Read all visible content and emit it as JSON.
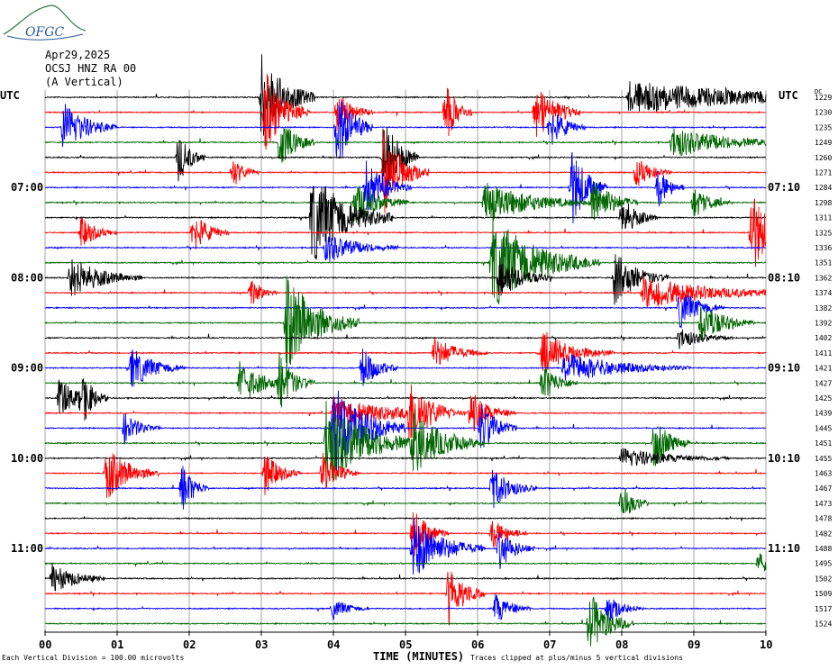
{
  "logo": {
    "text": "OFGC"
  },
  "header": {
    "date": "Apr29,2025",
    "station": "OCSJ HNZ RA 00",
    "component": "(A Vertical)"
  },
  "left_tz_label": "UTC",
  "right_tz_label": "UTC",
  "dc_label": "DC",
  "colors": {
    "black": "#000000",
    "red": "#ff0000",
    "blue": "#0000ff",
    "green": "#006600",
    "grid": "#808080"
  },
  "chart_data": {
    "type": "line",
    "title": "OCSJ HNZ RA 00 (A Vertical)",
    "xlabel": "TIME (MINUTES)",
    "x_ticks": [
      "00",
      "01",
      "02",
      "03",
      "04",
      "05",
      "06",
      "07",
      "08",
      "09",
      "10"
    ],
    "xlim": [
      0,
      10
    ],
    "left_hour_labels": [
      {
        "row": 6,
        "label": "07:00"
      },
      {
        "row": 12,
        "label": "08:00"
      },
      {
        "row": 18,
        "label": "09:00"
      },
      {
        "row": 24,
        "label": "10:00"
      },
      {
        "row": 30,
        "label": "11:00"
      }
    ],
    "right_hour_labels": [
      {
        "row": 6,
        "label": "07:10"
      },
      {
        "row": 12,
        "label": "08:10"
      },
      {
        "row": 18,
        "label": "09:10"
      },
      {
        "row": 24,
        "label": "10:10"
      },
      {
        "row": 30,
        "label": "11:10"
      }
    ],
    "trace_color_cycle": [
      "black",
      "red",
      "blue",
      "green"
    ],
    "dc_offsets": [
      1229,
      1230,
      1235,
      1249,
      1260,
      1271,
      1284,
      1298,
      1311,
      1325,
      1336,
      1351,
      1362,
      1374,
      1382,
      1392,
      1402,
      1411,
      1421,
      1427,
      1425,
      1439,
      1445,
      1451,
      1455,
      1463,
      1467,
      1473,
      1478,
      1482,
      1488,
      1495,
      1502,
      1509,
      1517,
      1524
    ],
    "events": [
      {
        "row": 0,
        "t": 3.0,
        "amp": 9,
        "dur": 0.3
      },
      {
        "row": 0,
        "t": 8.1,
        "amp": 3,
        "dur": 1.8
      },
      {
        "row": 1,
        "t": 3.05,
        "amp": 8,
        "dur": 0.25
      },
      {
        "row": 1,
        "t": 4.05,
        "amp": 4,
        "dur": 0.2
      },
      {
        "row": 1,
        "t": 5.55,
        "amp": 6,
        "dur": 0.15
      },
      {
        "row": 1,
        "t": 6.8,
        "amp": 6,
        "dur": 0.25
      },
      {
        "row": 2,
        "t": 0.25,
        "amp": 5,
        "dur": 0.3
      },
      {
        "row": 2,
        "t": 4.05,
        "amp": 8,
        "dur": 0.2
      },
      {
        "row": 2,
        "t": 7.0,
        "amp": 4,
        "dur": 0.2
      },
      {
        "row": 3,
        "t": 3.25,
        "amp": 5,
        "dur": 0.2
      },
      {
        "row": 3,
        "t": 8.7,
        "amp": 3,
        "dur": 0.7
      },
      {
        "row": 4,
        "t": 1.85,
        "amp": 5,
        "dur": 0.15
      },
      {
        "row": 4,
        "t": 4.7,
        "amp": 8,
        "dur": 0.2
      },
      {
        "row": 5,
        "t": 2.6,
        "amp": 3,
        "dur": 0.15
      },
      {
        "row": 5,
        "t": 4.7,
        "amp": 8,
        "dur": 0.25
      },
      {
        "row": 5,
        "t": 8.2,
        "amp": 3,
        "dur": 0.2
      },
      {
        "row": 6,
        "t": 4.45,
        "amp": 5,
        "dur": 0.25
      },
      {
        "row": 6,
        "t": 7.3,
        "amp": 8,
        "dur": 0.2
      },
      {
        "row": 6,
        "t": 8.5,
        "amp": 4,
        "dur": 0.15
      },
      {
        "row": 7,
        "t": 4.3,
        "amp": 4,
        "dur": 0.3
      },
      {
        "row": 7,
        "t": 6.1,
        "amp": 4,
        "dur": 0.6
      },
      {
        "row": 7,
        "t": 7.6,
        "amp": 5,
        "dur": 0.25
      },
      {
        "row": 7,
        "t": 9.0,
        "amp": 3,
        "dur": 0.2
      },
      {
        "row": 8,
        "t": 3.7,
        "amp": 9,
        "dur": 0.45
      },
      {
        "row": 8,
        "t": 8.0,
        "amp": 4,
        "dur": 0.2
      },
      {
        "row": 9,
        "t": 0.5,
        "amp": 3,
        "dur": 0.2
      },
      {
        "row": 9,
        "t": 2.05,
        "amp": 4,
        "dur": 0.2
      },
      {
        "row": 9,
        "t": 9.8,
        "amp": 9,
        "dur": 0.2
      },
      {
        "row": 10,
        "t": 3.9,
        "amp": 3,
        "dur": 0.4
      },
      {
        "row": 11,
        "t": 6.2,
        "amp": 9,
        "dur": 0.6
      },
      {
        "row": 12,
        "t": 0.35,
        "amp": 4,
        "dur": 0.4
      },
      {
        "row": 12,
        "t": 6.3,
        "amp": 4,
        "dur": 0.3
      },
      {
        "row": 12,
        "t": 7.9,
        "amp": 5,
        "dur": 0.3
      },
      {
        "row": 13,
        "t": 2.85,
        "amp": 3,
        "dur": 0.15
      },
      {
        "row": 13,
        "t": 8.3,
        "amp": 3,
        "dur": 0.9
      },
      {
        "row": 14,
        "t": 8.8,
        "amp": 4,
        "dur": 0.25
      },
      {
        "row": 15,
        "t": 3.35,
        "amp": 9,
        "dur": 0.4
      },
      {
        "row": 15,
        "t": 9.1,
        "amp": 4,
        "dur": 0.3
      },
      {
        "row": 16,
        "t": 8.8,
        "amp": 2,
        "dur": 0.3
      },
      {
        "row": 17,
        "t": 5.4,
        "amp": 3,
        "dur": 0.3
      },
      {
        "row": 17,
        "t": 6.9,
        "amp": 4,
        "dur": 0.4
      },
      {
        "row": 18,
        "t": 1.2,
        "amp": 4,
        "dur": 0.3
      },
      {
        "row": 18,
        "t": 4.4,
        "amp": 4,
        "dur": 0.2
      },
      {
        "row": 18,
        "t": 7.2,
        "amp": 3,
        "dur": 0.7
      },
      {
        "row": 19,
        "t": 2.7,
        "amp": 4,
        "dur": 0.3
      },
      {
        "row": 19,
        "t": 3.25,
        "amp": 5,
        "dur": 0.2
      },
      {
        "row": 19,
        "t": 6.9,
        "amp": 4,
        "dur": 0.2
      },
      {
        "row": 20,
        "t": 0.2,
        "amp": 4,
        "dur": 0.2
      },
      {
        "row": 20,
        "t": 0.5,
        "amp": 5,
        "dur": 0.15
      },
      {
        "row": 21,
        "t": 5.05,
        "amp": 6,
        "dur": 0.25
      },
      {
        "row": 21,
        "t": 5.9,
        "amp": 4,
        "dur": 0.25
      },
      {
        "row": 21,
        "t": 4.0,
        "amp": 3,
        "dur": 0.8
      },
      {
        "row": 22,
        "t": 1.1,
        "amp": 3,
        "dur": 0.2
      },
      {
        "row": 22,
        "t": 4.0,
        "amp": 9,
        "dur": 0.4
      },
      {
        "row": 22,
        "t": 6.05,
        "amp": 5,
        "dur": 0.2
      },
      {
        "row": 23,
        "t": 3.9,
        "amp": 9,
        "dur": 0.5
      },
      {
        "row": 23,
        "t": 5.1,
        "amp": 6,
        "dur": 0.4
      },
      {
        "row": 23,
        "t": 8.45,
        "amp": 5,
        "dur": 0.2
      },
      {
        "row": 24,
        "t": 8.0,
        "amp": 2,
        "dur": 0.6
      },
      {
        "row": 25,
        "t": 0.85,
        "amp": 5,
        "dur": 0.3
      },
      {
        "row": 25,
        "t": 3.05,
        "amp": 4,
        "dur": 0.2
      },
      {
        "row": 25,
        "t": 3.85,
        "amp": 4,
        "dur": 0.2
      },
      {
        "row": 26,
        "t": 1.9,
        "amp": 5,
        "dur": 0.15
      },
      {
        "row": 26,
        "t": 6.2,
        "amp": 4,
        "dur": 0.25
      },
      {
        "row": 27,
        "t": 8.0,
        "amp": 4,
        "dur": 0.15
      },
      {
        "row": 29,
        "t": 5.1,
        "amp": 5,
        "dur": 0.2
      },
      {
        "row": 29,
        "t": 6.2,
        "amp": 3,
        "dur": 0.2
      },
      {
        "row": 30,
        "t": 5.1,
        "amp": 6,
        "dur": 0.4
      },
      {
        "row": 30,
        "t": 6.3,
        "amp": 4,
        "dur": 0.2
      },
      {
        "row": 31,
        "t": 9.9,
        "amp": 2,
        "dur": 0.2
      },
      {
        "row": 32,
        "t": 0.1,
        "amp": 3,
        "dur": 0.3
      },
      {
        "row": 33,
        "t": 5.6,
        "amp": 6,
        "dur": 0.2
      },
      {
        "row": 34,
        "t": 4.0,
        "amp": 2,
        "dur": 0.2
      },
      {
        "row": 34,
        "t": 6.25,
        "amp": 3,
        "dur": 0.2
      },
      {
        "row": 34,
        "t": 7.8,
        "amp": 3,
        "dur": 0.2
      },
      {
        "row": 35,
        "t": 7.55,
        "amp": 6,
        "dur": 0.25
      }
    ]
  },
  "footer": {
    "division_note": "Each Vertical Division =  100.00 microvolts",
    "clip_note": "Traces clipped at plus/minus 5 vertical divisions"
  }
}
